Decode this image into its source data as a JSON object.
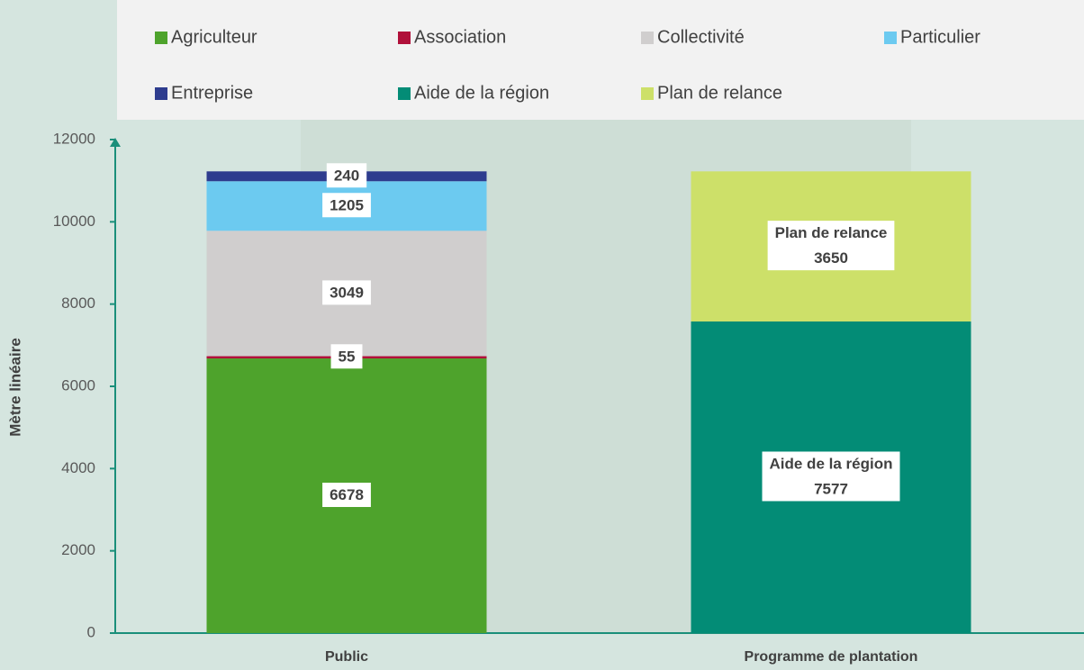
{
  "chart_data": {
    "type": "stacked_bar",
    "y_label": "Mètre linéaire",
    "categories": [
      "Public",
      "Programme de plantation"
    ],
    "series": [
      {
        "name": "Agriculteur",
        "color": "#4ea32c",
        "values": [
          6678,
          null
        ]
      },
      {
        "name": "Association",
        "color": "#b0103a",
        "values": [
          55,
          null
        ]
      },
      {
        "name": "Collectivité",
        "color": "#d0cece",
        "values": [
          3049,
          null
        ]
      },
      {
        "name": "Particulier",
        "color": "#6ccaf0",
        "values": [
          1205,
          null
        ]
      },
      {
        "name": "Entreprise",
        "color": "#2e3c8e",
        "values": [
          240,
          null
        ]
      },
      {
        "name": "Aide de la région",
        "color": "#038c76",
        "values": [
          null,
          7577
        ],
        "label_shows_name": true
      },
      {
        "name": "Plan de relance",
        "color": "#cde069",
        "values": [
          null,
          3650
        ],
        "label_shows_name": true
      }
    ],
    "ylim": [
      0,
      12000
    ],
    "yticks": [
      0,
      2000,
      4000,
      6000,
      8000,
      10000,
      12000
    ],
    "axis_color": "#1a8f7a",
    "legend": "top"
  }
}
